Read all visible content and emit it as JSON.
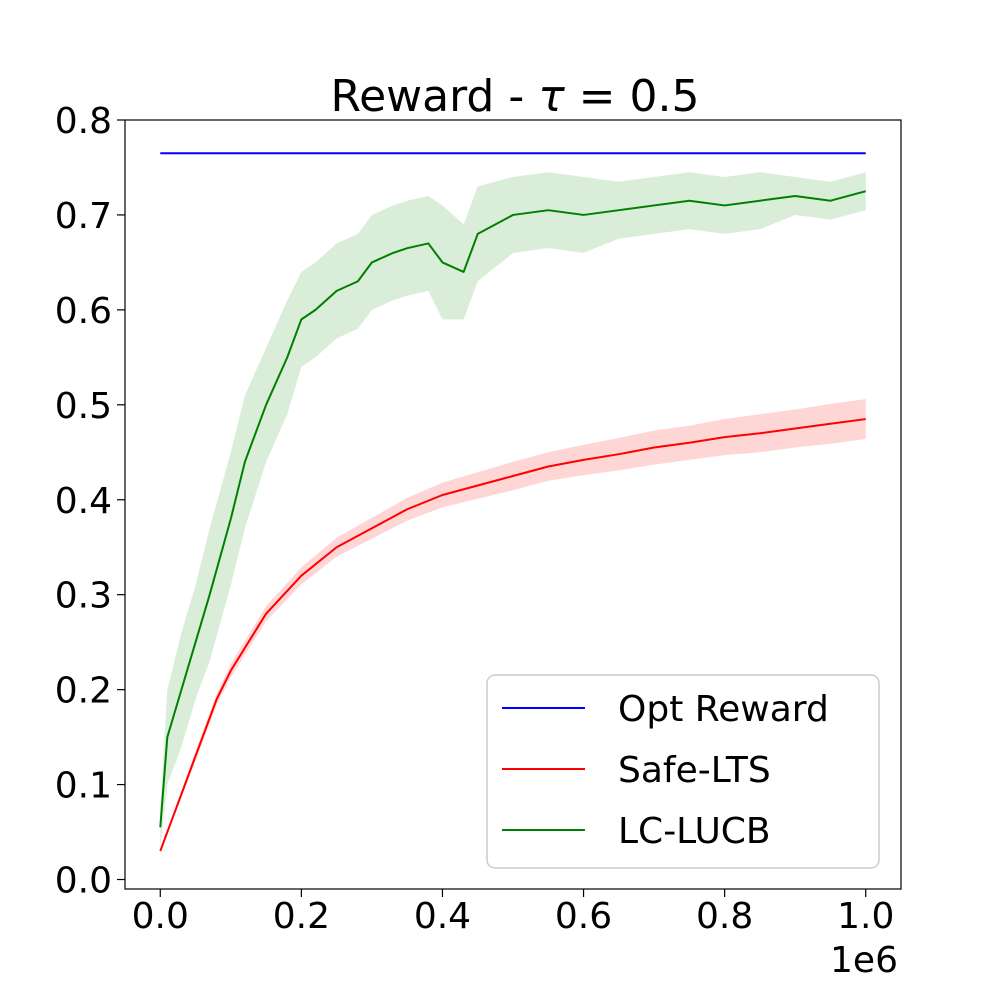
{
  "chart_data": {
    "type": "line",
    "title": "Reward - τ = 0.5",
    "title_prefix": "Reward - ",
    "title_symbol": "τ",
    "title_suffix": " = 0.5",
    "xlabel": "",
    "ylabel": "",
    "x_offset_label": "1e6",
    "xlim": [
      -0.05,
      1.05
    ],
    "ylim": [
      -0.01,
      0.8
    ],
    "x_ticks": [
      0.0,
      0.2,
      0.4,
      0.6,
      0.8,
      1.0
    ],
    "x_tick_labels": [
      "0.0",
      "0.2",
      "0.4",
      "0.6",
      "0.8",
      "1.0"
    ],
    "y_ticks": [
      0.0,
      0.1,
      0.2,
      0.3,
      0.4,
      0.5,
      0.6,
      0.7,
      0.8
    ],
    "y_tick_labels": [
      "0.0",
      "0.1",
      "0.2",
      "0.3",
      "0.4",
      "0.5",
      "0.6",
      "0.7",
      "0.8"
    ],
    "grid": false,
    "legend_position": "lower-right",
    "series": [
      {
        "name": "Opt Reward",
        "color": "#0000ff",
        "x": [
          0.0,
          1.0
        ],
        "y": [
          0.765,
          0.765
        ]
      },
      {
        "name": "Safe-LTS",
        "color": "#ff0000",
        "band_color": "#ffcccc",
        "x": [
          0.0,
          0.02,
          0.05,
          0.08,
          0.1,
          0.15,
          0.2,
          0.25,
          0.3,
          0.35,
          0.4,
          0.45,
          0.5,
          0.55,
          0.6,
          0.65,
          0.7,
          0.75,
          0.8,
          0.85,
          0.9,
          0.95,
          1.0
        ],
        "y": [
          0.03,
          0.07,
          0.13,
          0.19,
          0.22,
          0.28,
          0.32,
          0.35,
          0.37,
          0.39,
          0.405,
          0.415,
          0.425,
          0.435,
          0.442,
          0.448,
          0.455,
          0.46,
          0.466,
          0.47,
          0.475,
          0.48,
          0.485
        ],
        "band": [
          0.0,
          0.003,
          0.005,
          0.006,
          0.007,
          0.008,
          0.009,
          0.01,
          0.011,
          0.012,
          0.013,
          0.014,
          0.015,
          0.015,
          0.016,
          0.017,
          0.018,
          0.018,
          0.019,
          0.02,
          0.02,
          0.021,
          0.021
        ]
      },
      {
        "name": "LC-LUCB",
        "color": "#008000",
        "band_color": "#cfe8cf",
        "x": [
          0.0,
          0.01,
          0.03,
          0.05,
          0.07,
          0.1,
          0.12,
          0.15,
          0.18,
          0.2,
          0.22,
          0.25,
          0.28,
          0.3,
          0.33,
          0.35,
          0.38,
          0.4,
          0.43,
          0.45,
          0.5,
          0.55,
          0.6,
          0.65,
          0.7,
          0.75,
          0.8,
          0.85,
          0.9,
          0.95,
          1.0
        ],
        "y": [
          0.055,
          0.15,
          0.2,
          0.25,
          0.3,
          0.38,
          0.44,
          0.5,
          0.55,
          0.59,
          0.6,
          0.62,
          0.63,
          0.65,
          0.66,
          0.665,
          0.67,
          0.65,
          0.64,
          0.68,
          0.7,
          0.705,
          0.7,
          0.705,
          0.71,
          0.715,
          0.71,
          0.715,
          0.72,
          0.715,
          0.725
        ],
        "band": [
          0.02,
          0.05,
          0.06,
          0.06,
          0.07,
          0.07,
          0.07,
          0.06,
          0.06,
          0.05,
          0.05,
          0.05,
          0.05,
          0.05,
          0.05,
          0.05,
          0.05,
          0.06,
          0.05,
          0.05,
          0.04,
          0.04,
          0.04,
          0.03,
          0.03,
          0.03,
          0.03,
          0.03,
          0.02,
          0.02,
          0.02
        ]
      }
    ]
  }
}
